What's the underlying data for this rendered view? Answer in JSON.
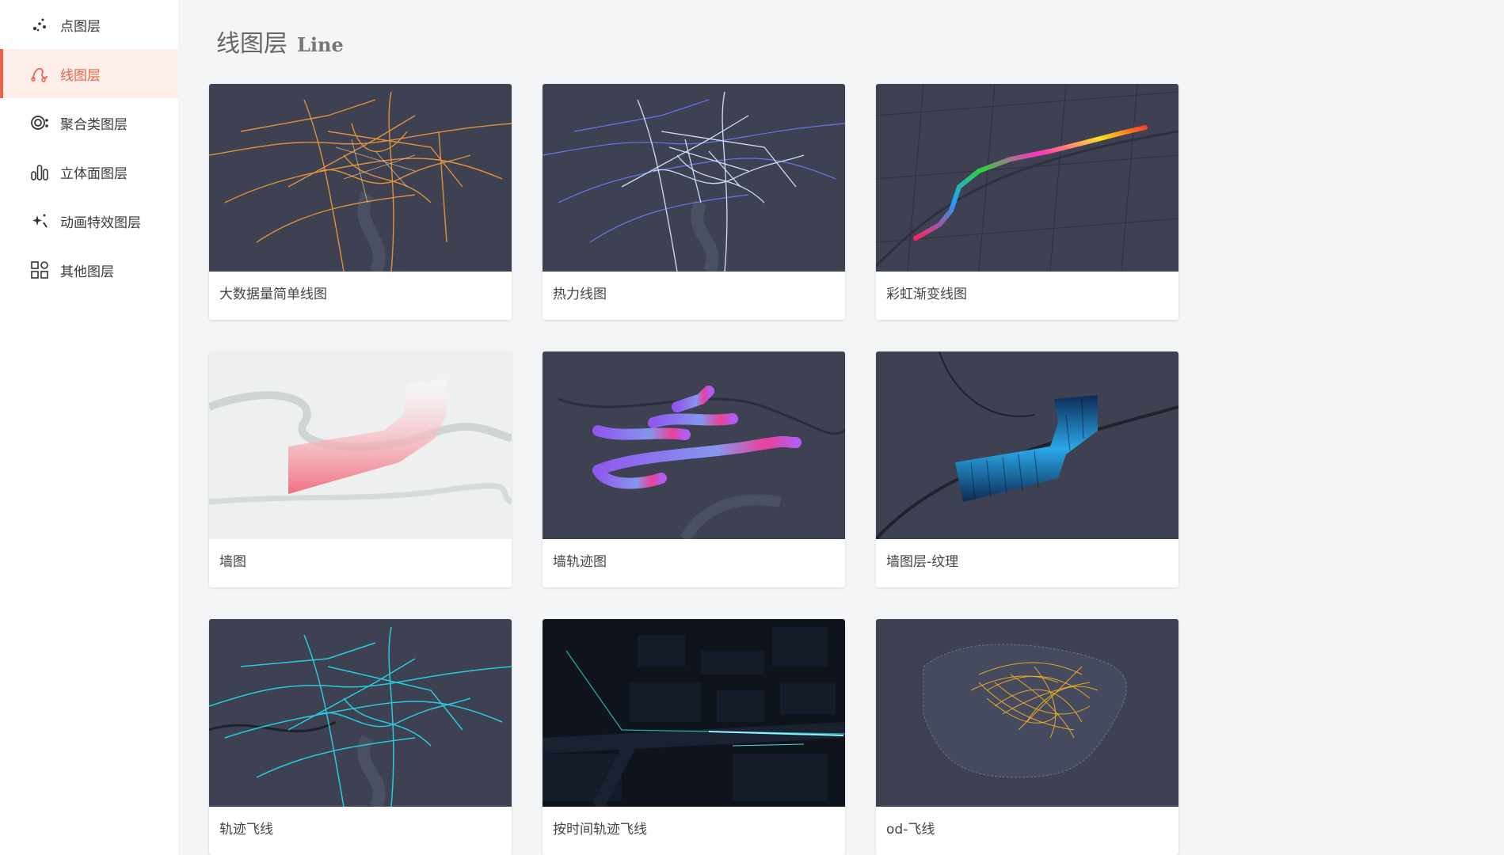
{
  "sidebar": {
    "items": [
      {
        "label": "点图层",
        "icon": "dots-icon"
      },
      {
        "label": "线图层",
        "icon": "line-layer-icon",
        "active": true
      },
      {
        "label": "聚合类图层",
        "icon": "cluster-icon"
      },
      {
        "label": "立体面图层",
        "icon": "3d-columns-icon"
      },
      {
        "label": "动画特效图层",
        "icon": "sparkle-icon"
      },
      {
        "label": "其他图层",
        "icon": "grid-apps-icon"
      }
    ]
  },
  "header": {
    "title": "线图层",
    "subtitle": "Line"
  },
  "cards": [
    {
      "label": "大数据量简单线图"
    },
    {
      "label": "热力线图"
    },
    {
      "label": "彩虹渐变线图"
    },
    {
      "label": "墙图"
    },
    {
      "label": "墙轨迹图"
    },
    {
      "label": "墙图层-纹理"
    },
    {
      "label": "轨迹飞线"
    },
    {
      "label": "按时间轨迹飞线"
    },
    {
      "label": "od-飞线"
    }
  ],
  "colors": {
    "accent": "#e8634b",
    "map_dark": "#3b3f52",
    "map_light": "#eef0f0"
  }
}
